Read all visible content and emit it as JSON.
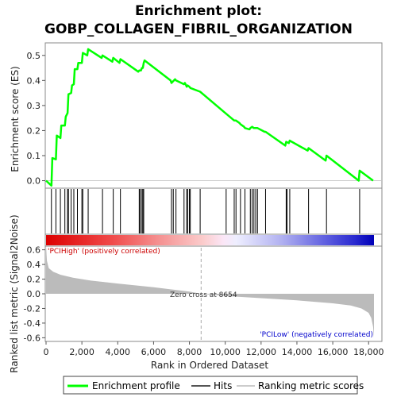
{
  "title_line1": "Enrichment plot:",
  "title_line2": "GOBP_COLLAGEN_FIBRIL_ORGANIZATION",
  "colors": {
    "enrichment": "#00ff00",
    "hits": "#000000",
    "metric_fill": "#bbbbbb",
    "pos_label": "#cc0000",
    "neg_label": "#0000cc",
    "zero_cross_line": "#aaaaaa"
  },
  "legend": {
    "enrichment": "Enrichment profile",
    "hits": "Hits",
    "ranking": "Ranking metric scores"
  },
  "chart_data": [
    {
      "type": "line",
      "name": "enrichment-profile",
      "ylabel": "Enrichment score (ES)",
      "xlim": [
        0,
        18300
      ],
      "ylim": [
        -0.03,
        0.55
      ],
      "y_ticks": [
        0.0,
        0.1,
        0.2,
        0.3,
        0.4,
        0.5
      ],
      "y_tick_labels": [
        "0.0",
        "0.1",
        "0.2",
        "0.3",
        "0.4",
        "0.5"
      ],
      "grid": false,
      "x": [
        0,
        300,
        350,
        550,
        600,
        800,
        850,
        1050,
        1100,
        1200,
        1250,
        1400,
        1450,
        1550,
        1600,
        1750,
        1800,
        2000,
        2050,
        2300,
        2350,
        3100,
        3150,
        3700,
        3750,
        4100,
        4150,
        5150,
        5200,
        5300,
        5350,
        5400,
        5450,
        5500,
        6950,
        7000,
        7200,
        7250,
        7700,
        7750,
        7850,
        7900,
        8000,
        8050,
        8600,
        10000,
        10500,
        10600,
        10800,
        10850,
        11050,
        11100,
        11350,
        11400,
        11500,
        11600,
        11700,
        11800,
        12200,
        12250,
        13350,
        13400,
        13550,
        13600,
        14600,
        14650,
        15600,
        15650,
        17450,
        17500,
        18250
      ],
      "y": [
        0.0,
        -0.02,
        0.09,
        0.085,
        0.18,
        0.17,
        0.22,
        0.22,
        0.255,
        0.27,
        0.345,
        0.35,
        0.38,
        0.385,
        0.445,
        0.445,
        0.47,
        0.47,
        0.51,
        0.5,
        0.525,
        0.49,
        0.5,
        0.475,
        0.49,
        0.47,
        0.485,
        0.435,
        0.44,
        0.44,
        0.45,
        0.45,
        0.47,
        0.48,
        0.4,
        0.39,
        0.405,
        0.4,
        0.385,
        0.39,
        0.375,
        0.38,
        0.375,
        0.37,
        0.355,
        0.27,
        0.24,
        0.24,
        0.23,
        0.225,
        0.215,
        0.21,
        0.205,
        0.21,
        0.215,
        0.21,
        0.21,
        0.21,
        0.195,
        0.195,
        0.14,
        0.155,
        0.15,
        0.16,
        0.12,
        0.13,
        0.08,
        0.1,
        0.0,
        0.04,
        0.0
      ]
    },
    {
      "type": "scatter",
      "name": "hits",
      "x": [
        300,
        550,
        800,
        1050,
        1200,
        1250,
        1400,
        1550,
        1750,
        2000,
        2050,
        2350,
        3150,
        3750,
        4150,
        5200,
        5250,
        5350,
        5400,
        5450,
        7000,
        7100,
        7250,
        7700,
        7850,
        7900,
        8000,
        8050,
        8600,
        10050,
        10500,
        10600,
        10850,
        11100,
        11400,
        11500,
        11600,
        11700,
        11800,
        12250,
        13400,
        13450,
        13600,
        14650,
        15650,
        17500
      ]
    },
    {
      "type": "area",
      "name": "ranking-metric",
      "ylabel": "Ranked list metric (Signal2Noise)",
      "xlabel": "Rank in Ordered Dataset",
      "xlim": [
        0,
        18300
      ],
      "ylim": [
        -0.65,
        0.65
      ],
      "x_ticks": [
        0,
        2000,
        4000,
        6000,
        8000,
        10000,
        12000,
        14000,
        16000,
        18000
      ],
      "x_tick_labels": [
        "0",
        "2,000",
        "4,000",
        "6,000",
        "8,000",
        "10,000",
        "12,000",
        "14,000",
        "16,000",
        "18,000"
      ],
      "y_ticks": [
        -0.6,
        -0.4,
        -0.2,
        0.0,
        0.2,
        0.4,
        0.6
      ],
      "y_tick_labels": [
        "-0.6",
        "-0.4",
        "-0.2",
        "0.0",
        "0.2",
        "0.4",
        "0.6"
      ],
      "x": [
        0,
        50,
        150,
        400,
        800,
        1500,
        2500,
        4000,
        6000,
        8000,
        8654,
        10000,
        12000,
        14000,
        16000,
        17000,
        17600,
        18000,
        18150,
        18250,
        18300
      ],
      "values": [
        0.65,
        0.45,
        0.35,
        0.3,
        0.26,
        0.22,
        0.18,
        0.14,
        0.09,
        0.03,
        0.0,
        -0.03,
        -0.06,
        -0.09,
        -0.13,
        -0.16,
        -0.2,
        -0.26,
        -0.33,
        -0.45,
        -0.6
      ],
      "zero_cross_label": "Zero cross at 8654",
      "zero_cross_x": 8654,
      "pos_label": "'PCIHigh' (positively correlated)",
      "neg_label": "'PCILow' (negatively correlated)"
    }
  ]
}
